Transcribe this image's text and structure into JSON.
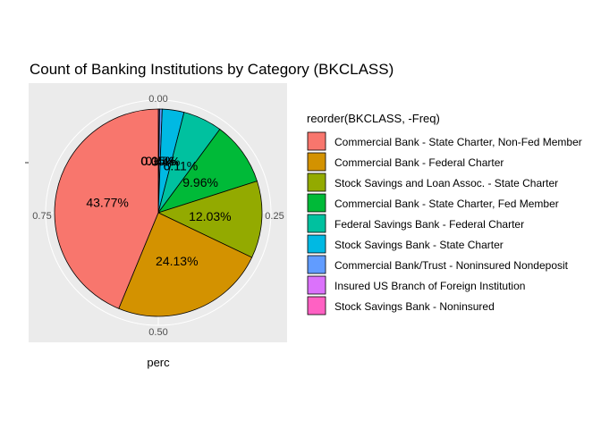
{
  "chart_data": {
    "type": "pie",
    "title": "Count of Banking Institutions by Category (BKCLASS)",
    "xlabel": "perc",
    "ylabel": "",
    "radial_ticks": [
      "0.00",
      "0.25",
      "0.50",
      "0.75"
    ],
    "legend": {
      "title": "reorder(BKCLASS, -Freq)",
      "placement": "right"
    },
    "slices": [
      {
        "label": "Commercial Bank - State Charter, Non-Fed Member",
        "value": 43.77,
        "value_label": "43.77%",
        "color": "#F8766D"
      },
      {
        "label": "Commercial Bank - Federal Charter",
        "value": 24.13,
        "value_label": "24.13%",
        "color": "#D39200"
      },
      {
        "label": "Stock Savings and Loan Assoc. - State Charter",
        "value": 12.03,
        "value_label": "12.03%",
        "color": "#93AA00"
      },
      {
        "label": "Commercial Bank - State Charter, Fed Member",
        "value": 9.96,
        "value_label": "9.96%",
        "color": "#00BA38"
      },
      {
        "label": "Federal Savings Bank - Federal Charter",
        "value": 6.11,
        "value_label": "6.11%",
        "color": "#00C19F"
      },
      {
        "label": "Stock Savings Bank - State Charter",
        "value": 3.4,
        "value_label": "3.4%",
        "color": "#00B9E3"
      },
      {
        "label": "Commercial Bank/Trust - Noninsured Nondeposit",
        "value": 0.4,
        "value_label": "0.4%",
        "color": "#619CFF"
      },
      {
        "label": "Insured US Branch of Foreign Institution",
        "value": 0.15,
        "value_label": "0.15%",
        "color": "#DB72FB"
      },
      {
        "label": "Stock Savings Bank - Noninsured",
        "value": 0.05,
        "value_label": "0.05%",
        "color": "#FF61C3"
      }
    ],
    "panel_color": "#EBEBEB",
    "grid_color": "#FFFFFF",
    "grid": true
  }
}
